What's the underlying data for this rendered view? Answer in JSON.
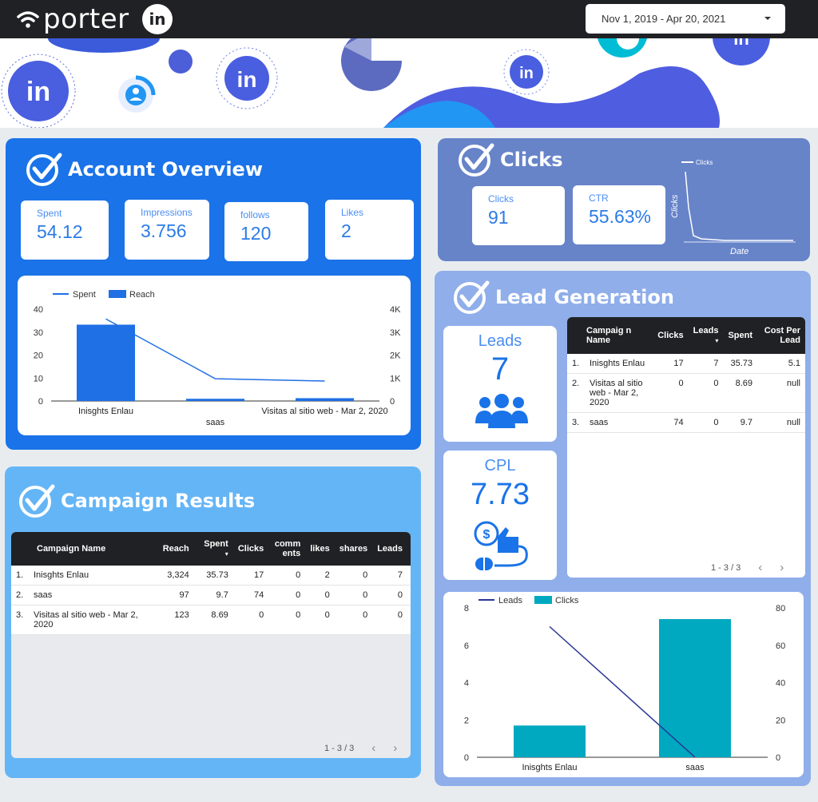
{
  "header": {
    "brand": "porter",
    "linkedin_badge": "in",
    "date_range": "Nov 1, 2019 - Apr 20, 2021"
  },
  "banner": {
    "badge_text": "in"
  },
  "account_overview": {
    "title": "Account Overview",
    "kpis": [
      {
        "label": "Spent",
        "value": "54.12"
      },
      {
        "label": "Impressions",
        "value": "3.756"
      },
      {
        "label": "follows",
        "value": "120"
      },
      {
        "label": "Likes",
        "value": "2"
      }
    ],
    "chart_data": {
      "type": "bar",
      "categories": [
        "Inisghts Enlau",
        "saas",
        "Visitas al sitio web - Mar 2, 2020"
      ],
      "series": [
        {
          "name": "Reach",
          "type": "bar",
          "axis": "right",
          "values": [
            3324,
            97,
            123
          ]
        },
        {
          "name": "Spent",
          "type": "line",
          "axis": "left",
          "values": [
            35.73,
            9.7,
            8.69
          ]
        }
      ],
      "y_left": {
        "ticks": [
          "0",
          "10",
          "20",
          "30",
          "40"
        ],
        "range": [
          0,
          40
        ]
      },
      "y_right": {
        "ticks": [
          "0",
          "1K",
          "2K",
          "3K",
          "4K"
        ],
        "range": [
          0,
          4000
        ]
      },
      "legend": "top-left",
      "colors": {
        "bar": "#1f6fe5",
        "line": "#1f6fe5"
      }
    }
  },
  "clicks_panel": {
    "title": "Clicks",
    "kpis": [
      {
        "label": "Clicks",
        "value": "91"
      },
      {
        "label": "CTR",
        "value": "55.63%"
      }
    ],
    "sparkline": {
      "legend": "Clicks",
      "ylabel": "Clicks",
      "xlabel": "Date"
    }
  },
  "lead_generation": {
    "title": "Lead Generation",
    "leads": {
      "label": "Leads",
      "value": "7"
    },
    "cpl": {
      "label": "CPL",
      "value": "7.73"
    },
    "table": {
      "headers": [
        "Campaig n Name",
        "Clicks",
        "Leads",
        "Spent",
        "Cost Per Lead"
      ],
      "rows": [
        {
          "idx": "1.",
          "name": "Inisghts Enlau",
          "clicks": "17",
          "leads": "7",
          "spent": "35.73",
          "cpl": "5.1"
        },
        {
          "idx": "2.",
          "name": "Visitas al sitio web - Mar 2, 2020",
          "clicks": "0",
          "leads": "0",
          "spent": "8.69",
          "cpl": "null"
        },
        {
          "idx": "3.",
          "name": "saas",
          "clicks": "74",
          "leads": "0",
          "spent": "9.7",
          "cpl": "null"
        }
      ],
      "pager": "1 - 3 / 3"
    },
    "chart_data": {
      "type": "bar",
      "categories": [
        "Inisghts Enlau",
        "saas"
      ],
      "series": [
        {
          "name": "Clicks",
          "type": "bar",
          "axis": "right",
          "values": [
            17,
            74
          ]
        },
        {
          "name": "Leads",
          "type": "line",
          "axis": "left",
          "values": [
            7,
            0
          ]
        }
      ],
      "y_left": {
        "ticks": [
          "0",
          "2",
          "4",
          "6",
          "8"
        ],
        "range": [
          0,
          8
        ]
      },
      "y_right": {
        "ticks": [
          "0",
          "20",
          "40",
          "60",
          "80"
        ],
        "range": [
          0,
          80
        ]
      },
      "legend": "top-left",
      "colors": {
        "bar": "#00a8c0",
        "line": "#283593"
      }
    }
  },
  "campaign_results": {
    "title": "Campaign Results",
    "headers": [
      "Campaign Name",
      "Reach",
      "Spent",
      "Clicks",
      "comm ents",
      "likes",
      "shares",
      "Leads"
    ],
    "rows": [
      {
        "idx": "1.",
        "name": "Inisghts Enlau",
        "reach": "3,324",
        "spent": "35.73",
        "clicks": "17",
        "comments": "0",
        "likes": "2",
        "shares": "0",
        "leads": "7"
      },
      {
        "idx": "2.",
        "name": "saas",
        "reach": "97",
        "spent": "9.7",
        "clicks": "74",
        "comments": "0",
        "likes": "0",
        "shares": "0",
        "leads": "0"
      },
      {
        "idx": "3.",
        "name": "Visitas al sitio web - Mar 2, 2020",
        "reach": "123",
        "spent": "8.69",
        "clicks": "0",
        "comments": "0",
        "likes": "0",
        "shares": "0",
        "leads": "0"
      }
    ],
    "pager": "1 - 3 / 3"
  },
  "pager_arrows": {
    "prev": "‹",
    "next": "›"
  },
  "sort_indicator": "▾"
}
